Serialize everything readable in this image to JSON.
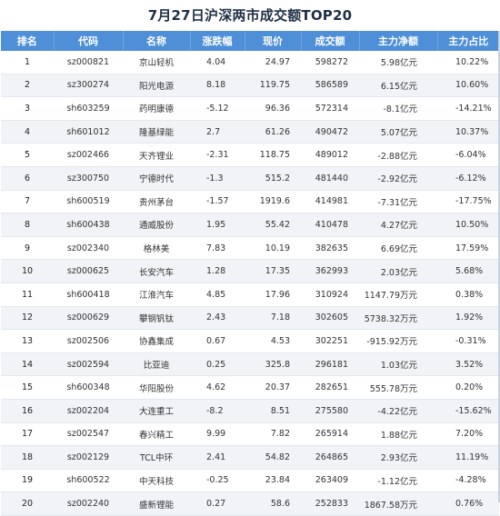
{
  "title": "7月27日沪深两市成交额TOP20",
  "headers": [
    "排名",
    "代码",
    "名称",
    "涨跌幅",
    "现价",
    "成交额",
    "主力净额",
    "主力占比"
  ],
  "rows": [
    [
      "1",
      "sz000821",
      "京山轻机",
      "4.04",
      "24.97",
      "598272",
      "5.98亿元",
      "10.22%"
    ],
    [
      "2",
      "sz300274",
      "阳光电源",
      "8.18",
      "119.75",
      "586589",
      "6.15亿元",
      "10.60%"
    ],
    [
      "3",
      "sh603259",
      "药明康德",
      "-5.12",
      "96.36",
      "572314",
      "-8.1亿元",
      "-14.21%"
    ],
    [
      "4",
      "sh601012",
      "隆基绿能",
      "2.7",
      "61.26",
      "490472",
      "5.07亿元",
      "10.37%"
    ],
    [
      "5",
      "sz002466",
      "天齐锂业",
      "-2.31",
      "118.75",
      "489012",
      "-2.88亿元",
      "-6.04%"
    ],
    [
      "6",
      "sz300750",
      "宁德时代",
      "-1.3",
      "515.2",
      "481440",
      "-2.92亿元",
      "-6.12%"
    ],
    [
      "7",
      "sh600519",
      "贵州茅台",
      "-1.57",
      "1919.6",
      "414981",
      "-7.31亿元",
      "-17.75%"
    ],
    [
      "8",
      "sh600438",
      "通威股份",
      "1.95",
      "55.42",
      "410478",
      "4.27亿元",
      "10.50%"
    ],
    [
      "9",
      "sz002340",
      "格林美",
      "7.83",
      "10.19",
      "382635",
      "6.69亿元",
      "17.59%"
    ],
    [
      "10",
      "sz000625",
      "长安汽车",
      "1.28",
      "17.35",
      "362993",
      "2.03亿元",
      "5.68%"
    ],
    [
      "11",
      "sh600418",
      "江淮汽车",
      "4.85",
      "17.96",
      "310924",
      "1147.79万元",
      "0.38%"
    ],
    [
      "12",
      "sz000629",
      "攀钢钒钛",
      "2.43",
      "7.18",
      "302605",
      "5738.32万元",
      "1.92%"
    ],
    [
      "13",
      "sz002506",
      "协鑫集成",
      "0.67",
      "4.53",
      "302251",
      "-915.92万元",
      "-0.31%"
    ],
    [
      "14",
      "sz002594",
      "比亚迪",
      "0.25",
      "325.8",
      "296181",
      "1.03亿元",
      "3.52%"
    ],
    [
      "15",
      "sh600348",
      "华阳股份",
      "4.62",
      "20.37",
      "282651",
      "555.78万元",
      "0.20%"
    ],
    [
      "16",
      "sz002204",
      "大连重工",
      "-8.2",
      "8.51",
      "275580",
      "-4.22亿元",
      "-15.62%"
    ],
    [
      "17",
      "sz002547",
      "春兴精工",
      "9.99",
      "7.82",
      "265914",
      "1.88亿元",
      "7.20%"
    ],
    [
      "18",
      "sz002129",
      "TCL中环",
      "2.41",
      "54.82",
      "264865",
      "2.93亿元",
      "11.19%"
    ],
    [
      "19",
      "sh600522",
      "中天科技",
      "-0.25",
      "23.84",
      "263409",
      "-1.12亿元",
      "-4.28%"
    ],
    [
      "20",
      "sz002240",
      "盛新锂能",
      "0.27",
      "58.6",
      "252833",
      "1867.58万元",
      "0.76%"
    ]
  ],
  "colors": {
    "header_bg": "#4e8fd8",
    "header_text": "#ffffff",
    "stripe_bg": "#f1f3f6",
    "title_text": "#1f2f45"
  }
}
